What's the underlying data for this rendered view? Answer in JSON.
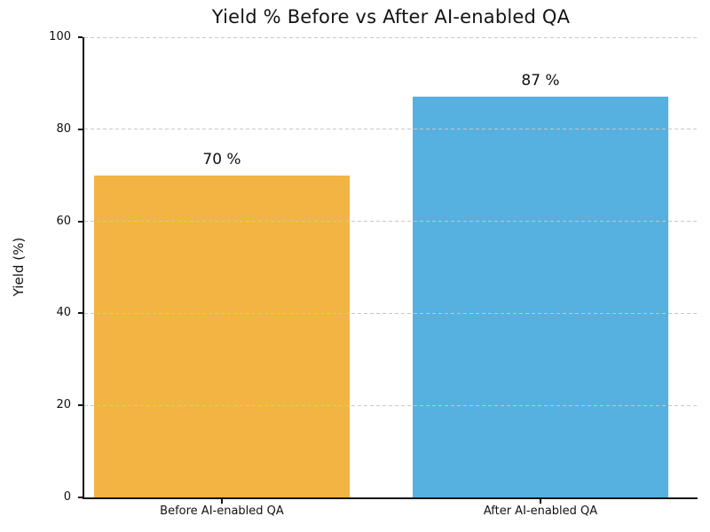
{
  "chart_data": {
    "type": "bar",
    "title": "Yield % Before vs After AI-enabled QA",
    "xlabel": "",
    "ylabel": "Yield (%)",
    "categories": [
      "Before AI-enabled QA",
      "After AI-enabled QA"
    ],
    "values": [
      70,
      87
    ],
    "bar_labels": [
      "70 %",
      "87 %"
    ],
    "bar_colors": [
      "#F2B442",
      "#56B1E0"
    ],
    "ylim": [
      0,
      100
    ],
    "yticks": [
      0,
      20,
      40,
      60,
      80,
      100
    ],
    "grid": {
      "axis": "y",
      "style": "dashed",
      "color": "#c8c8c8",
      "above_bars": true
    },
    "axis_color": "#111111",
    "title_color": "#141414",
    "background_color": "#ffffff",
    "legend_position": "none"
  }
}
